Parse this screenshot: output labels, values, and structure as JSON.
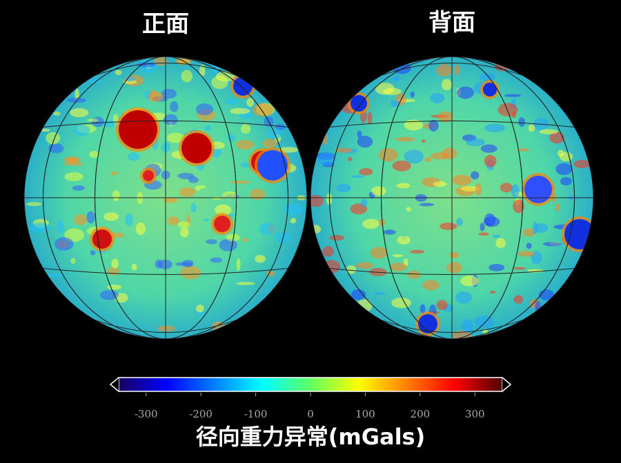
{
  "panels": [
    {
      "title": "正面"
    },
    {
      "title": "背面"
    }
  ],
  "colorbar": {
    "range": [
      -350,
      350
    ],
    "ticks": [
      -300,
      -200,
      -100,
      0,
      100,
      200,
      300
    ],
    "colors": [
      "#1a0060",
      "#0000ff",
      "#0080ff",
      "#00ffff",
      "#60ff60",
      "#ffff00",
      "#ff8000",
      "#ff0000",
      "#500000"
    ],
    "label": "径向重力异常(mGals)"
  }
}
